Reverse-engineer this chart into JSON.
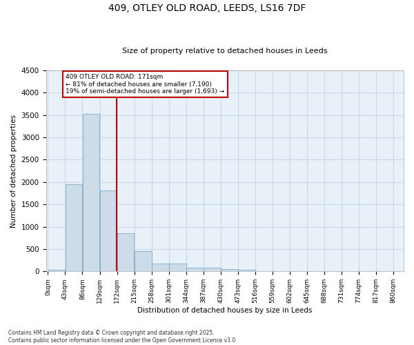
{
  "title_line1": "409, OTLEY OLD ROAD, LEEDS, LS16 7DF",
  "title_line2": "Size of property relative to detached houses in Leeds",
  "xlabel": "Distribution of detached houses by size in Leeds",
  "ylabel": "Number of detached properties",
  "annotation_line1": "409 OTLEY OLD ROAD: 171sqm",
  "annotation_line2": "← 81% of detached houses are smaller (7,190)",
  "annotation_line3": "19% of semi-detached houses are larger (1,693) →",
  "property_size": 171,
  "bar_color": "#ccdce8",
  "bar_edge_color": "#7aaac8",
  "vline_color": "#bb0000",
  "grid_color": "#c8d8e8",
  "background_color": "#e8f0f8",
  "ylim": [
    0,
    4500
  ],
  "bin_edges": [
    0,
    43,
    86,
    129,
    172,
    215,
    258,
    301,
    344,
    387,
    430,
    473,
    516,
    559,
    602,
    645,
    688,
    731,
    774,
    817,
    860
  ],
  "bin_labels": [
    "0sqm",
    "43sqm",
    "86sqm",
    "129sqm",
    "172sqm",
    "215sqm",
    "258sqm",
    "301sqm",
    "344sqm",
    "387sqm",
    "430sqm",
    "473sqm",
    "516sqm",
    "559sqm",
    "602sqm",
    "645sqm",
    "688sqm",
    "731sqm",
    "774sqm",
    "817sqm",
    "860sqm"
  ],
  "bar_heights": [
    30,
    1950,
    3520,
    1820,
    860,
    450,
    175,
    175,
    90,
    90,
    50,
    30,
    5,
    5,
    5,
    3,
    2,
    2,
    1,
    1
  ],
  "footer_line1": "Contains HM Land Registry data © Crown copyright and database right 2025.",
  "footer_line2": "Contains public sector information licensed under the Open Government Licence v3.0."
}
